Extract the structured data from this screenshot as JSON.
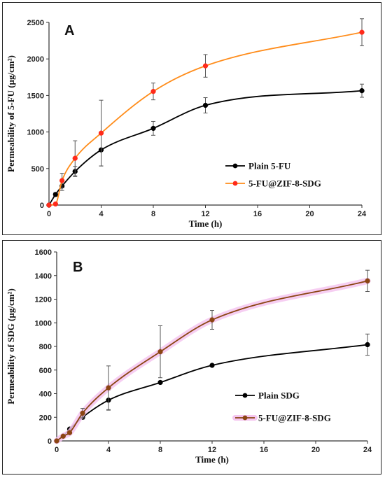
{
  "chart_data": [
    {
      "type": "line",
      "panel_label": "A",
      "xlabel": "Time (h)",
      "ylabel": "Permeability of 5-FU (µg/cm²)",
      "xlim": [
        0,
        24
      ],
      "ylim": [
        0,
        2500
      ],
      "xticks": [
        0,
        4,
        8,
        12,
        16,
        20,
        24
      ],
      "yticks": [
        0,
        500,
        1000,
        1500,
        2000,
        2500
      ],
      "legend_position": "lower-right",
      "series": [
        {
          "name": "Plain 5-FU",
          "color": "#000000",
          "x": [
            0,
            0.5,
            1,
            2,
            4,
            8,
            12,
            24
          ],
          "y": [
            0,
            145,
            260,
            460,
            755,
            1050,
            1365,
            1565
          ],
          "err": [
            0,
            25,
            60,
            70,
            220,
            95,
            105,
            90
          ]
        },
        {
          "name": "5-FU@ZIF-8-SDG",
          "color": "#ff2a1a",
          "line_color": "#ff8c1a",
          "x": [
            0,
            0.5,
            1,
            2,
            4,
            8,
            12,
            24
          ],
          "y": [
            0,
            15,
            335,
            640,
            985,
            1555,
            1905,
            2365
          ],
          "err": [
            0,
            10,
            100,
            240,
            450,
            115,
            155,
            185
          ]
        }
      ]
    },
    {
      "type": "line",
      "panel_label": "B",
      "xlabel": "Time (h)",
      "ylabel": "Permeability of SDG (µg/cm²)",
      "xlim": [
        0,
        24
      ],
      "ylim": [
        0,
        1600
      ],
      "xticks": [
        0,
        4,
        8,
        12,
        16,
        20,
        24
      ],
      "yticks": [
        0,
        200,
        400,
        600,
        800,
        1000,
        1200,
        1400,
        1600
      ],
      "legend_position": "lower-right",
      "series": [
        {
          "name": "Plain SDG",
          "color": "#000000",
          "x": [
            0,
            0.5,
            1,
            2,
            4,
            8,
            12,
            24
          ],
          "y": [
            0,
            40,
            100,
            200,
            345,
            495,
            640,
            815
          ],
          "err": [
            0,
            5,
            10,
            15,
            85,
            10,
            10,
            90
          ]
        },
        {
          "name": "5-FU@ZIF-8-SDG",
          "color": "#8b4513",
          "line_color": "#8b4513",
          "glow_color": "#f5c6f0",
          "x": [
            0,
            0.5,
            1,
            2,
            4,
            8,
            12,
            24
          ],
          "y": [
            0,
            40,
            70,
            235,
            450,
            755,
            1025,
            1355
          ],
          "err": [
            0,
            5,
            10,
            40,
            185,
            220,
            80,
            90
          ]
        }
      ]
    }
  ]
}
